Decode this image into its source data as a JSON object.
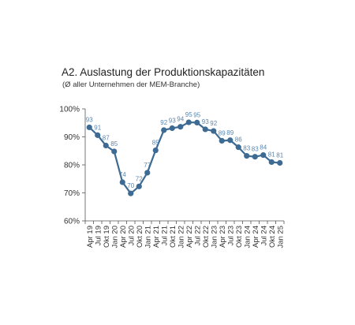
{
  "chart_data": {
    "type": "line",
    "title": "A2. Auslastung der Produktionskapazitäten",
    "subtitle": "(Ø aller Unternehmen der MEM-Branche)",
    "y_tick_labels": [
      "100%",
      "90%",
      "80%",
      "70%",
      "60%"
    ],
    "ylim": [
      60,
      100
    ],
    "y_ticks": [
      100,
      90,
      80,
      70,
      60
    ],
    "grid": false,
    "categories": [
      "Apr 19",
      "Jul 19",
      "Okt 19",
      "Jan 20",
      "Apr 20",
      "Jul 20",
      "Okt 20",
      "Jan 21",
      "Apr 21",
      "Jul 21",
      "Okt 21",
      "Jan 22",
      "Apr 22",
      "Jul 22",
      "Okt 22",
      "Jan 23",
      "Apr 23",
      "Jul 23",
      "Okt 23",
      "Jan 24",
      "Apr 24",
      "Jul 24",
      "Okt 24",
      "Jan 25"
    ],
    "values": [
      93.4,
      90.6,
      86.9,
      84.8,
      73.8,
      69.8,
      72.3,
      77.2,
      85.2,
      92.4,
      93.1,
      93.6,
      95.2,
      95.1,
      92.7,
      92.1,
      88.6,
      88.8,
      86.3,
      83.2,
      82.9,
      83.5,
      81.0,
      80.7
    ],
    "labels": [
      "93",
      "91",
      "87",
      "85",
      "74",
      "70",
      "72",
      "77",
      "85",
      "92",
      "93",
      "94",
      "95",
      "95",
      "93",
      "92",
      "89",
      "89",
      "86",
      "83",
      "83",
      "84",
      "81",
      "81"
    ],
    "series_color": "#3d6b93",
    "label_color": "#5b86ad"
  }
}
